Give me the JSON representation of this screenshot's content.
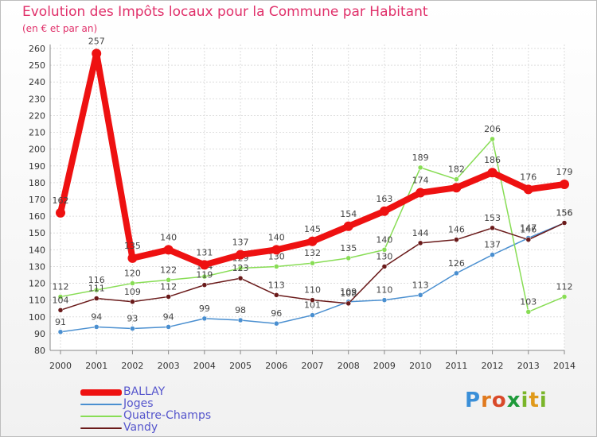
{
  "header": {
    "title": "Evolution des Impôts locaux pour la Commune par Habitant",
    "subtitle": "(en € et par an)"
  },
  "brand": "Proxiti",
  "chart_data": {
    "type": "line",
    "x": [
      2000,
      2001,
      2002,
      2003,
      2004,
      2005,
      2006,
      2007,
      2008,
      2009,
      2010,
      2011,
      2012,
      2013,
      2014
    ],
    "ylim": [
      80,
      260
    ],
    "yticks": [
      80,
      90,
      100,
      110,
      120,
      130,
      140,
      150,
      160,
      170,
      180,
      190,
      200,
      210,
      220,
      230,
      240,
      250,
      260
    ],
    "grid": true,
    "legend_position": "bottom-left",
    "series": [
      {
        "name": "BALLAY",
        "color": "#ee1111",
        "values": [
          162,
          257,
          135,
          140,
          131,
          137,
          140,
          145,
          154,
          163,
          174,
          177,
          186,
          176,
          179
        ],
        "labels": [
          "162",
          "257",
          "135",
          "140",
          "131",
          "137",
          "140",
          "145",
          "154",
          "163",
          "174",
          "",
          "186",
          "176",
          "179"
        ]
      },
      {
        "name": "Joges",
        "color": "#4a8fd0",
        "values": [
          91,
          94,
          93,
          94,
          99,
          98,
          96,
          101,
          109,
          110,
          113,
          126,
          137,
          147,
          156
        ],
        "labels": [
          "91",
          "94",
          "93",
          "94",
          "99",
          "98",
          "96",
          "101",
          "109",
          "110",
          "113",
          "126",
          "137",
          "147",
          "156"
        ]
      },
      {
        "name": "Quatre-Champs",
        "color": "#88dd55",
        "values": [
          112,
          116,
          120,
          122,
          124,
          129,
          130,
          132,
          135,
          140,
          189,
          182,
          206,
          103,
          112
        ],
        "labels": [
          "112",
          "116",
          "120",
          "122",
          "124",
          "129",
          "130",
          "132",
          "135",
          "140",
          "189",
          "182",
          "206",
          "103",
          "112"
        ]
      },
      {
        "name": "Vandy",
        "color": "#6a1a1a",
        "values": [
          104,
          111,
          109,
          112,
          119,
          123,
          113,
          110,
          108,
          130,
          144,
          146,
          153,
          146,
          156
        ],
        "labels": [
          "104",
          "111",
          "109",
          "112",
          "119",
          "123",
          "113",
          "110",
          "108",
          "130",
          "144",
          "146",
          "153",
          "146",
          "156"
        ]
      }
    ]
  }
}
